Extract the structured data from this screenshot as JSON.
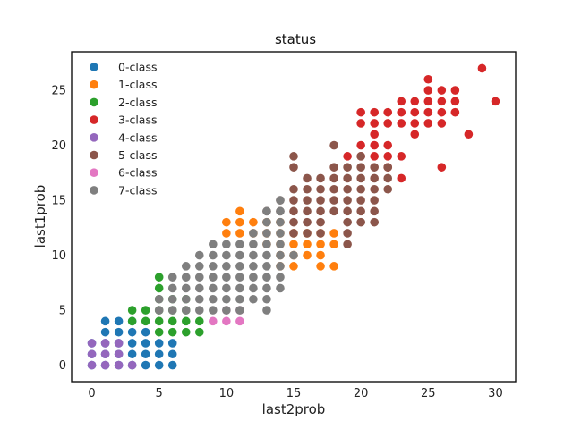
{
  "chart_data": {
    "type": "scatter",
    "title": "status",
    "xlabel": "last2prob",
    "ylabel": "last1prob",
    "xlim": [
      -1.5,
      31.5
    ],
    "ylim": [
      -1.5,
      28.5
    ],
    "xticks": [
      0,
      5,
      10,
      15,
      20,
      25,
      30
    ],
    "yticks": [
      0,
      5,
      10,
      15,
      20,
      25
    ],
    "grid": false,
    "legend_position": "top-left",
    "series": [
      {
        "name": "0-class",
        "color": "#1f77b4",
        "points": [
          [
            0,
            0
          ],
          [
            0,
            1
          ],
          [
            0,
            2
          ],
          [
            1,
            0
          ],
          [
            1,
            1
          ],
          [
            1,
            2
          ],
          [
            1,
            3
          ],
          [
            1,
            4
          ],
          [
            2,
            0
          ],
          [
            2,
            1
          ],
          [
            2,
            2
          ],
          [
            2,
            3
          ],
          [
            2,
            4
          ],
          [
            3,
            0
          ],
          [
            3,
            1
          ],
          [
            3,
            2
          ],
          [
            3,
            3
          ],
          [
            3,
            4
          ],
          [
            4,
            0
          ],
          [
            4,
            1
          ],
          [
            4,
            2
          ],
          [
            4,
            3
          ],
          [
            5,
            0
          ],
          [
            5,
            1
          ],
          [
            5,
            2
          ],
          [
            6,
            0
          ],
          [
            6,
            1
          ],
          [
            6,
            2
          ]
        ]
      },
      {
        "name": "1-class",
        "color": "#ff7f0e",
        "points": [
          [
            10,
            12
          ],
          [
            10,
            13
          ],
          [
            11,
            12
          ],
          [
            11,
            13
          ],
          [
            11,
            14
          ],
          [
            12,
            12
          ],
          [
            12,
            13
          ],
          [
            13,
            11
          ],
          [
            13,
            12
          ],
          [
            13,
            13
          ],
          [
            14,
            9
          ],
          [
            14,
            10
          ],
          [
            14,
            11
          ],
          [
            14,
            12
          ],
          [
            14,
            13
          ],
          [
            15,
            9
          ],
          [
            15,
            10
          ],
          [
            15,
            11
          ],
          [
            15,
            12
          ],
          [
            16,
            10
          ],
          [
            16,
            11
          ],
          [
            16,
            12
          ],
          [
            17,
            9
          ],
          [
            17,
            10
          ],
          [
            17,
            11
          ],
          [
            17,
            12
          ],
          [
            18,
            9
          ],
          [
            18,
            11
          ],
          [
            18,
            12
          ]
        ]
      },
      {
        "name": "2-class",
        "color": "#2ca02c",
        "points": [
          [
            3,
            4
          ],
          [
            3,
            5
          ],
          [
            4,
            4
          ],
          [
            4,
            5
          ],
          [
            5,
            3
          ],
          [
            5,
            4
          ],
          [
            5,
            5
          ],
          [
            5,
            6
          ],
          [
            5,
            7
          ],
          [
            5,
            8
          ],
          [
            6,
            3
          ],
          [
            6,
            4
          ],
          [
            6,
            5
          ],
          [
            6,
            6
          ],
          [
            7,
            3
          ],
          [
            7,
            4
          ],
          [
            7,
            5
          ],
          [
            7,
            6
          ],
          [
            8,
            3
          ],
          [
            8,
            4
          ]
        ]
      },
      {
        "name": "3-class",
        "color": "#d62728",
        "points": [
          [
            19,
            19
          ],
          [
            20,
            19
          ],
          [
            20,
            20
          ],
          [
            20,
            22
          ],
          [
            20,
            23
          ],
          [
            21,
            19
          ],
          [
            21,
            20
          ],
          [
            21,
            21
          ],
          [
            21,
            22
          ],
          [
            21,
            23
          ],
          [
            22,
            18
          ],
          [
            22,
            19
          ],
          [
            22,
            20
          ],
          [
            22,
            22
          ],
          [
            22,
            23
          ],
          [
            23,
            17
          ],
          [
            23,
            19
          ],
          [
            23,
            22
          ],
          [
            23,
            23
          ],
          [
            23,
            24
          ],
          [
            24,
            21
          ],
          [
            24,
            22
          ],
          [
            24,
            23
          ],
          [
            24,
            24
          ],
          [
            25,
            22
          ],
          [
            25,
            23
          ],
          [
            25,
            24
          ],
          [
            25,
            25
          ],
          [
            25,
            26
          ],
          [
            26,
            18
          ],
          [
            26,
            22
          ],
          [
            26,
            23
          ],
          [
            26,
            24
          ],
          [
            26,
            25
          ],
          [
            27,
            23
          ],
          [
            27,
            24
          ],
          [
            27,
            25
          ],
          [
            28,
            21
          ],
          [
            29,
            27
          ],
          [
            30,
            24
          ]
        ]
      },
      {
        "name": "4-class",
        "color": "#9467bd",
        "points": [
          [
            0,
            0
          ],
          [
            0,
            1
          ],
          [
            0,
            2
          ],
          [
            1,
            0
          ],
          [
            1,
            1
          ],
          [
            1,
            2
          ],
          [
            2,
            0
          ],
          [
            2,
            1
          ],
          [
            2,
            2
          ],
          [
            3,
            0
          ]
        ]
      },
      {
        "name": "5-class",
        "color": "#8c564b",
        "points": [
          [
            13,
            14
          ],
          [
            14,
            14
          ],
          [
            14,
            15
          ],
          [
            15,
            12
          ],
          [
            15,
            13
          ],
          [
            15,
            14
          ],
          [
            15,
            15
          ],
          [
            15,
            16
          ],
          [
            15,
            18
          ],
          [
            15,
            19
          ],
          [
            16,
            12
          ],
          [
            16,
            13
          ],
          [
            16,
            14
          ],
          [
            16,
            15
          ],
          [
            16,
            16
          ],
          [
            16,
            17
          ],
          [
            17,
            12
          ],
          [
            17,
            13
          ],
          [
            17,
            14
          ],
          [
            17,
            15
          ],
          [
            17,
            16
          ],
          [
            17,
            17
          ],
          [
            18,
            14
          ],
          [
            18,
            15
          ],
          [
            18,
            16
          ],
          [
            18,
            17
          ],
          [
            18,
            18
          ],
          [
            18,
            20
          ],
          [
            19,
            11
          ],
          [
            19,
            12
          ],
          [
            19,
            13
          ],
          [
            19,
            14
          ],
          [
            19,
            15
          ],
          [
            19,
            16
          ],
          [
            19,
            17
          ],
          [
            19,
            18
          ],
          [
            20,
            13
          ],
          [
            20,
            14
          ],
          [
            20,
            15
          ],
          [
            20,
            16
          ],
          [
            20,
            17
          ],
          [
            20,
            18
          ],
          [
            20,
            19
          ],
          [
            21,
            13
          ],
          [
            21,
            14
          ],
          [
            21,
            15
          ],
          [
            21,
            16
          ],
          [
            21,
            17
          ],
          [
            21,
            18
          ],
          [
            22,
            16
          ],
          [
            22,
            17
          ],
          [
            22,
            18
          ]
        ]
      },
      {
        "name": "6-class",
        "color": "#e377c2",
        "points": [
          [
            9,
            4
          ],
          [
            10,
            4
          ],
          [
            10,
            5
          ],
          [
            11,
            4
          ],
          [
            11,
            5
          ]
        ]
      },
      {
        "name": "7-class",
        "color": "#7f7f7f",
        "points": [
          [
            5,
            5
          ],
          [
            5,
            6
          ],
          [
            6,
            5
          ],
          [
            6,
            6
          ],
          [
            6,
            7
          ],
          [
            6,
            8
          ],
          [
            7,
            5
          ],
          [
            7,
            6
          ],
          [
            7,
            7
          ],
          [
            7,
            8
          ],
          [
            7,
            9
          ],
          [
            8,
            5
          ],
          [
            8,
            6
          ],
          [
            8,
            7
          ],
          [
            8,
            8
          ],
          [
            8,
            9
          ],
          [
            8,
            10
          ],
          [
            9,
            5
          ],
          [
            9,
            6
          ],
          [
            9,
            7
          ],
          [
            9,
            8
          ],
          [
            9,
            9
          ],
          [
            9,
            10
          ],
          [
            9,
            11
          ],
          [
            10,
            5
          ],
          [
            10,
            6
          ],
          [
            10,
            7
          ],
          [
            10,
            8
          ],
          [
            10,
            9
          ],
          [
            10,
            10
          ],
          [
            10,
            11
          ],
          [
            11,
            5
          ],
          [
            11,
            6
          ],
          [
            11,
            7
          ],
          [
            11,
            8
          ],
          [
            11,
            9
          ],
          [
            11,
            10
          ],
          [
            11,
            11
          ],
          [
            12,
            6
          ],
          [
            12,
            7
          ],
          [
            12,
            8
          ],
          [
            12,
            9
          ],
          [
            12,
            10
          ],
          [
            12,
            11
          ],
          [
            12,
            12
          ],
          [
            13,
            5
          ],
          [
            13,
            6
          ],
          [
            13,
            7
          ],
          [
            13,
            8
          ],
          [
            13,
            9
          ],
          [
            13,
            10
          ],
          [
            13,
            11
          ],
          [
            13,
            12
          ],
          [
            13,
            13
          ],
          [
            13,
            14
          ],
          [
            14,
            7
          ],
          [
            14,
            8
          ],
          [
            14,
            9
          ],
          [
            14,
            10
          ],
          [
            14,
            11
          ],
          [
            14,
            12
          ],
          [
            14,
            13
          ],
          [
            14,
            14
          ],
          [
            14,
            15
          ],
          [
            15,
            10
          ]
        ]
      }
    ]
  }
}
